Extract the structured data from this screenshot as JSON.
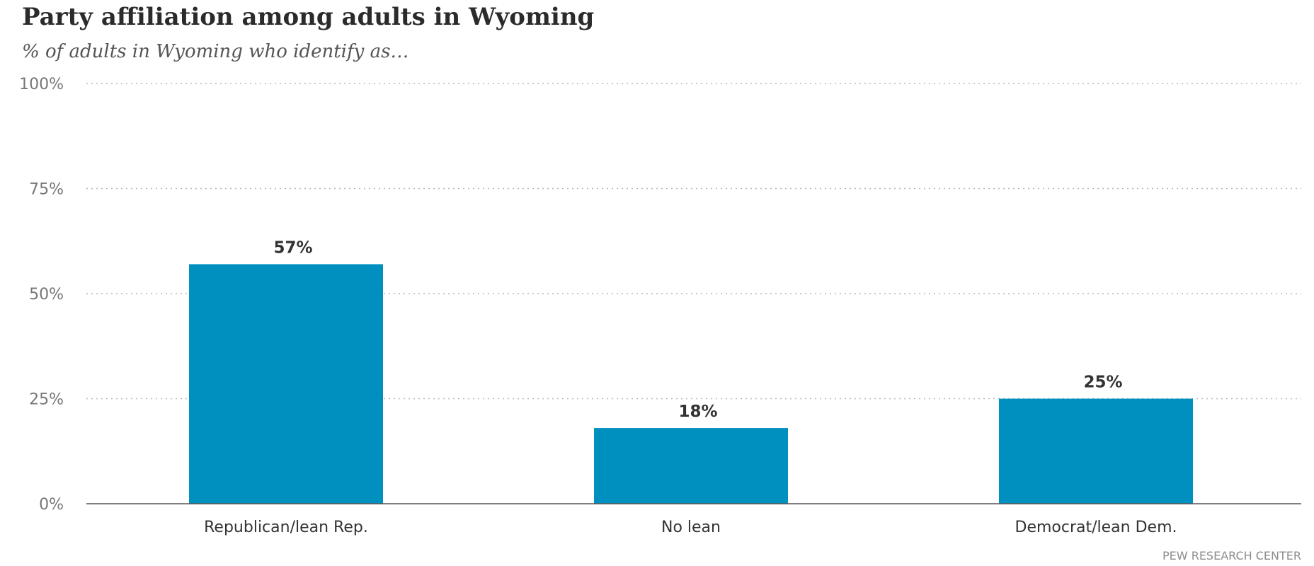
{
  "chart_data": {
    "type": "bar",
    "title": "Party affiliation among adults in Wyoming",
    "subtitle": "% of adults in Wyoming who identify as…",
    "categories": [
      "Republican/lean Rep.",
      "No lean",
      "Democrat/lean Dem."
    ],
    "values": [
      57,
      18,
      25
    ],
    "data_labels": [
      "57%",
      "18%",
      "25%"
    ],
    "ylim": [
      0,
      100
    ],
    "yticks": [
      0,
      25,
      50,
      75,
      100
    ],
    "ytick_labels": [
      "0%",
      "25%",
      "50%",
      "75%",
      "100%"
    ],
    "xlabel": "",
    "ylabel": "",
    "grid": true,
    "legend": "none",
    "bar_color": "#0090c0"
  },
  "source": "PEW RESEARCH CENTER"
}
